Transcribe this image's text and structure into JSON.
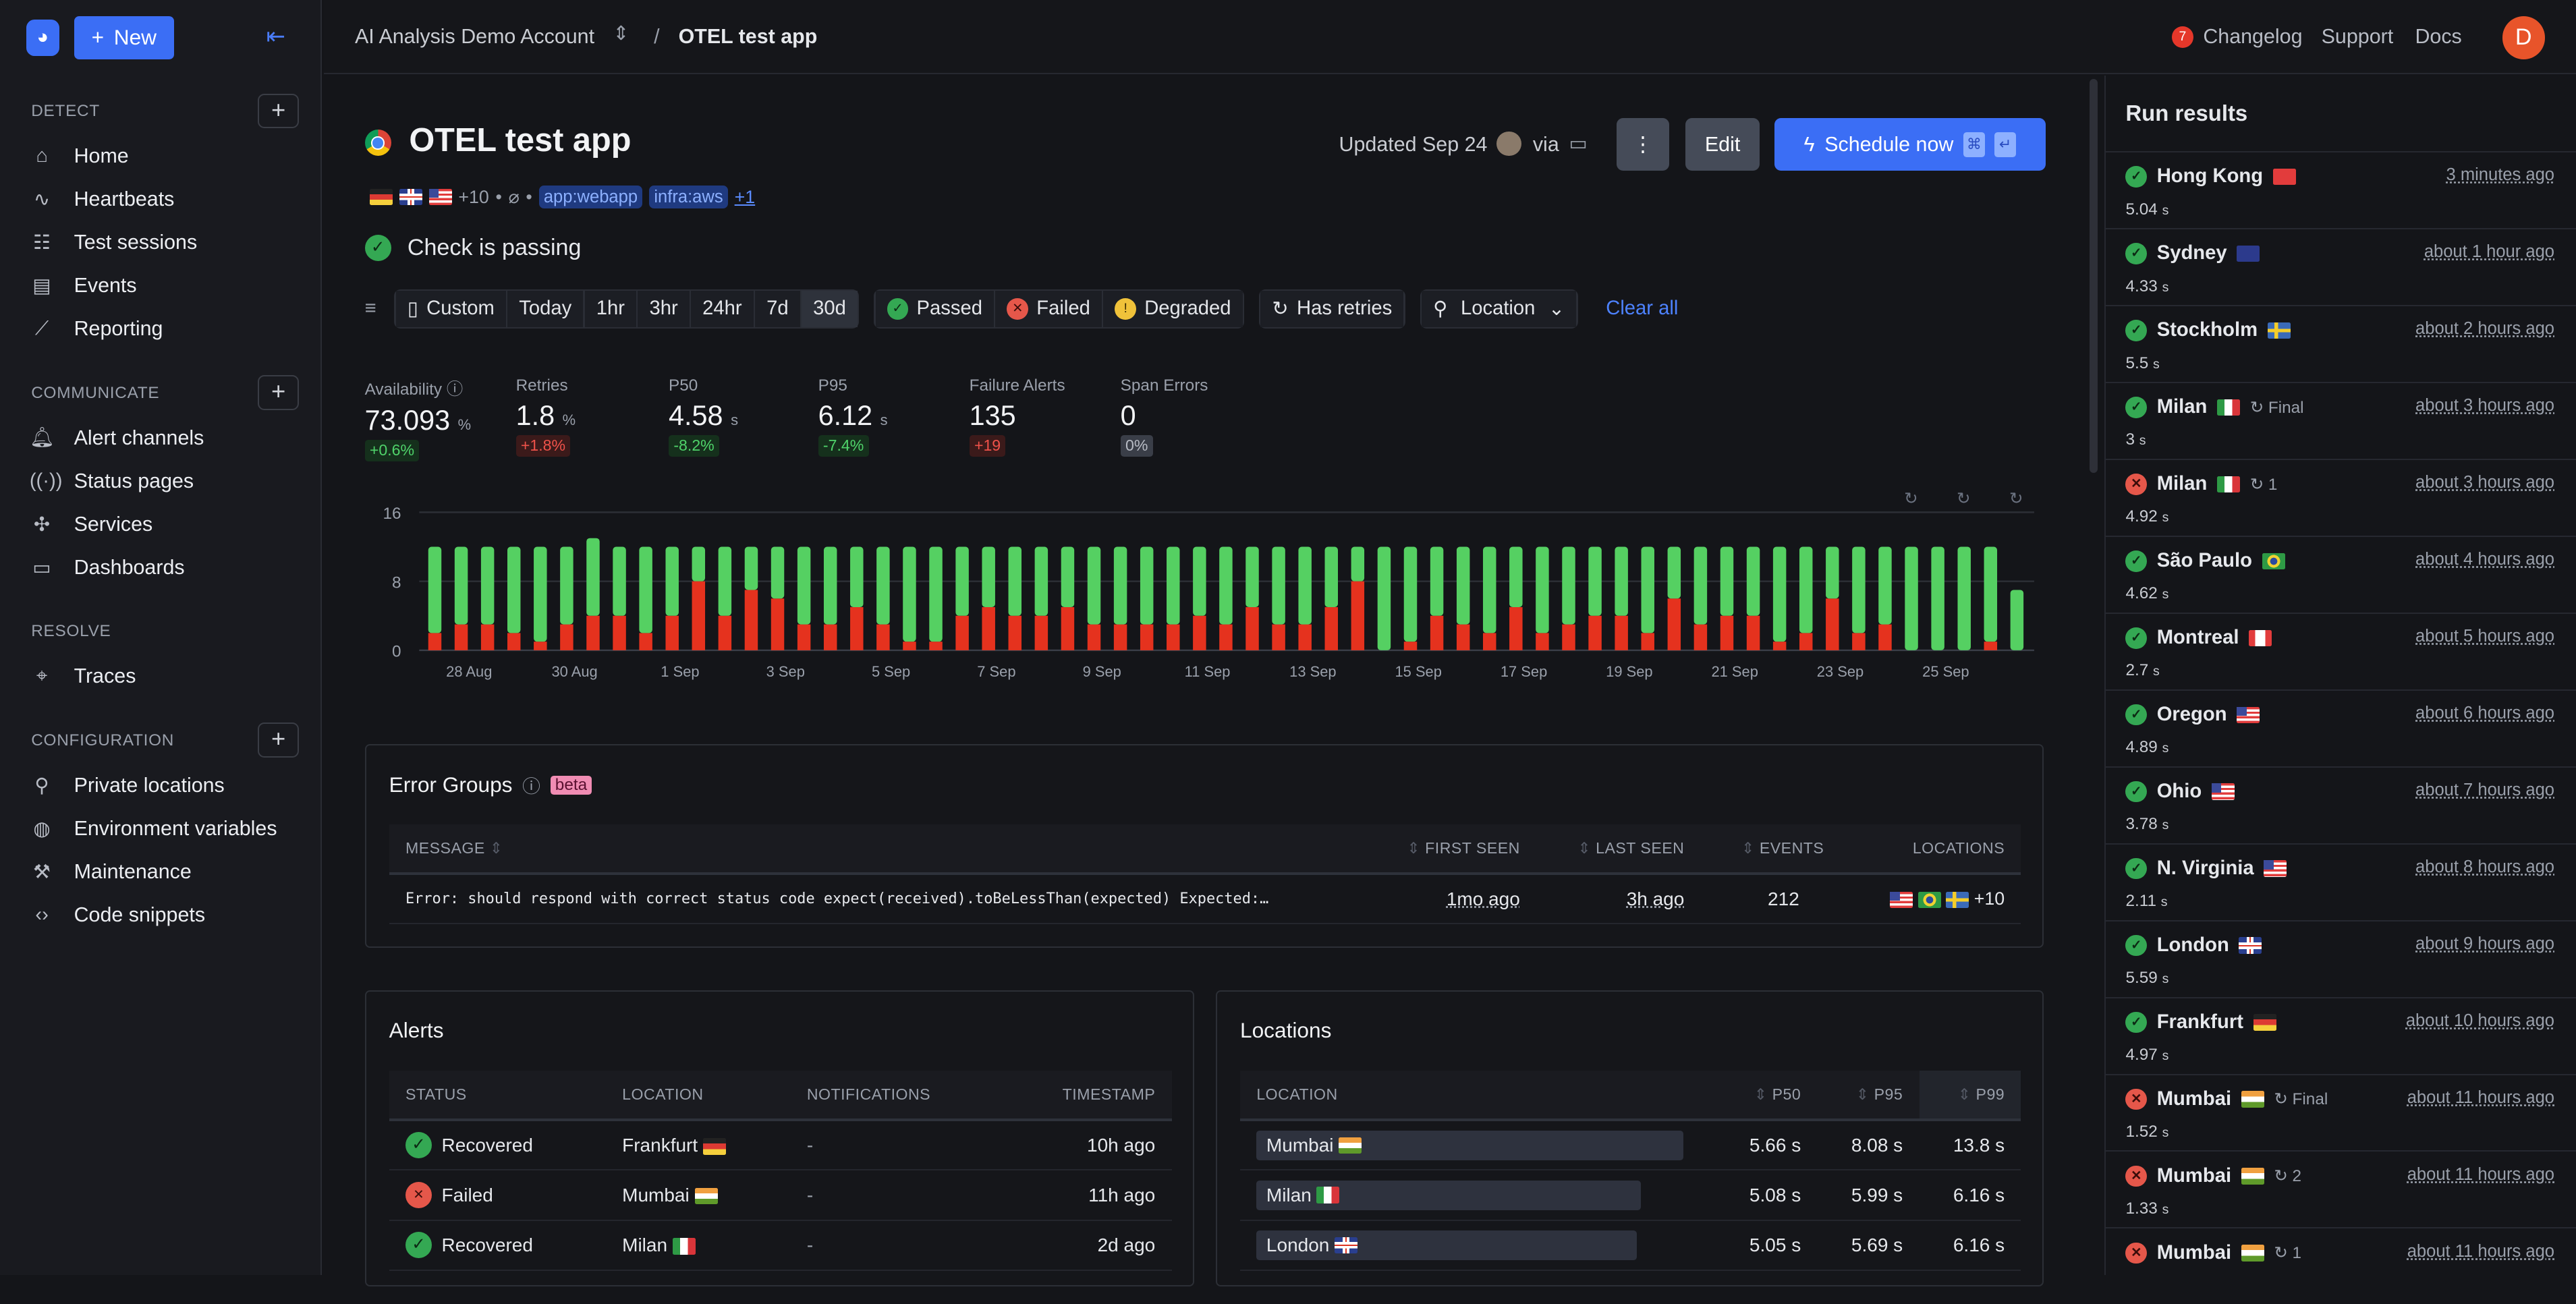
{
  "sidebar": {
    "new_label": "New",
    "sections": [
      {
        "title": "DETECT",
        "has_add": true,
        "items": [
          {
            "label": "Home",
            "icon": "home-icon",
            "glyph": "⌂"
          },
          {
            "label": "Heartbeats",
            "icon": "pulse-icon",
            "glyph": "∿"
          },
          {
            "label": "Test sessions",
            "icon": "checklist-icon",
            "glyph": "☷"
          },
          {
            "label": "Events",
            "icon": "events-icon",
            "glyph": "▤"
          },
          {
            "label": "Reporting",
            "icon": "chart-line-icon",
            "glyph": "⟋"
          }
        ]
      },
      {
        "title": "COMMUNICATE",
        "has_add": true,
        "items": [
          {
            "label": "Alert channels",
            "icon": "bell-icon",
            "glyph": "🔔︎"
          },
          {
            "label": "Status pages",
            "icon": "broadcast-icon",
            "glyph": "((·))"
          },
          {
            "label": "Services",
            "icon": "services-icon",
            "glyph": "✣"
          },
          {
            "label": "Dashboards",
            "icon": "monitor-icon",
            "glyph": "▭"
          }
        ]
      },
      {
        "title": "RESOLVE",
        "has_add": false,
        "items": [
          {
            "label": "Traces",
            "icon": "telescope-icon",
            "glyph": "⌖"
          }
        ]
      },
      {
        "title": "CONFIGURATION",
        "has_add": true,
        "items": [
          {
            "label": "Private locations",
            "icon": "map-pin-icon",
            "glyph": "⚲"
          },
          {
            "label": "Environment variables",
            "icon": "globe-icon",
            "glyph": "◍"
          },
          {
            "label": "Maintenance",
            "icon": "wrench-icon",
            "glyph": "⚒"
          },
          {
            "label": "Code snippets",
            "icon": "code-icon",
            "glyph": "‹›"
          }
        ]
      }
    ]
  },
  "header": {
    "account": "AI Analysis Demo Account",
    "separator": "/",
    "page": "OTEL test app",
    "changelog_count": "7",
    "links": [
      "Changelog",
      "Support",
      "Docs"
    ],
    "avatar_initial": "D"
  },
  "check": {
    "title": "OTEL test app",
    "flags": [
      "de",
      "gb",
      "us"
    ],
    "more_locations": "+10",
    "tags": [
      "app:webapp",
      "infra:aws"
    ],
    "more_tags": "+1",
    "status": "Check is passing",
    "updated": "Updated Sep 24",
    "via": "via",
    "edit_label": "Edit",
    "schedule_label": "Schedule now",
    "schedule_keys": [
      "⌘",
      "↵"
    ]
  },
  "filters": {
    "ranges": [
      "Custom",
      "Today",
      "1hr",
      "3hr",
      "24hr",
      "7d",
      "30d"
    ],
    "selected_range": "30d",
    "statuses": [
      "Passed",
      "Failed",
      "Degraded"
    ],
    "has_retries": "Has retries",
    "location": "Location",
    "clear_all": "Clear all"
  },
  "metrics": [
    {
      "label": "Availability",
      "value": "73.093",
      "unit": "%",
      "change": "+0.6%",
      "tone": "g"
    },
    {
      "label": "Retries",
      "value": "1.8",
      "unit": "%",
      "change": "+1.8%",
      "tone": "r"
    },
    {
      "label": "P50",
      "value": "4.58",
      "unit": "s",
      "change": "-8.2%",
      "tone": "g"
    },
    {
      "label": "P95",
      "value": "6.12",
      "unit": "s",
      "change": "-7.4%",
      "tone": "g"
    },
    {
      "label": "Failure Alerts",
      "value": "135",
      "unit": "",
      "change": "+19",
      "tone": "r"
    },
    {
      "label": "Span Errors",
      "value": "0",
      "unit": "",
      "change": "0%",
      "tone": "n"
    }
  ],
  "chart_data": {
    "type": "stacked-bar",
    "ylim": [
      0,
      16
    ],
    "yticks": [
      "0",
      "8",
      "16"
    ],
    "xticks": [
      "28 Aug",
      "30 Aug",
      "1 Sep",
      "3 Sep",
      "5 Sep",
      "7 Sep",
      "9 Sep",
      "11 Sep",
      "13 Sep",
      "15 Sep",
      "17 Sep",
      "19 Sep",
      "21 Sep",
      "23 Sep",
      "25 Sep"
    ],
    "grid": true,
    "series": [
      {
        "color": "#e5321e",
        "values": [
          2,
          3,
          3,
          2,
          1,
          3,
          4,
          4,
          2,
          4,
          8,
          4,
          7,
          6,
          3,
          3,
          5,
          3,
          1,
          1,
          4,
          5,
          4,
          4,
          5,
          3,
          3,
          3,
          3,
          4,
          3,
          5,
          3,
          3,
          5,
          8,
          0,
          1,
          4,
          3,
          2,
          5,
          2,
          3,
          4,
          4,
          2,
          6,
          3,
          4,
          4,
          1,
          2,
          6,
          2,
          3,
          0,
          0,
          0,
          1,
          0
        ]
      },
      {
        "color": "#55d062",
        "values": [
          10,
          9,
          9,
          10,
          11,
          9,
          9,
          8,
          10,
          8,
          4,
          8,
          5,
          6,
          9,
          9,
          7,
          9,
          11,
          11,
          8,
          7,
          8,
          8,
          7,
          9,
          9,
          9,
          9,
          8,
          9,
          7,
          9,
          9,
          7,
          4,
          12,
          11,
          8,
          9,
          10,
          7,
          10,
          9,
          8,
          8,
          10,
          6,
          9,
          8,
          8,
          11,
          10,
          6,
          10,
          9,
          12,
          12,
          12,
          11,
          7
        ]
      }
    ]
  },
  "error_groups": {
    "title": "Error Groups",
    "badge": "beta",
    "columns": [
      "MESSAGE",
      "FIRST SEEN",
      "LAST SEEN",
      "EVENTS",
      "LOCATIONS"
    ],
    "rows": [
      {
        "message": "Error: should respond with correct status code expect(received).toBeLessThan(expected) Expected:…",
        "first_seen": "1mo ago",
        "last_seen": "3h ago",
        "events": "212",
        "flags": [
          "us",
          "br",
          "se"
        ],
        "more": "+10"
      }
    ]
  },
  "alerts": {
    "title": "Alerts",
    "columns": [
      "STATUS",
      "LOCATION",
      "NOTIFICATIONS",
      "TIMESTAMP"
    ],
    "rows": [
      {
        "status": "Recovered",
        "ok": true,
        "location": "Frankfurt",
        "flag": "de",
        "notifications": "-",
        "timestamp": "10h ago"
      },
      {
        "status": "Failed",
        "ok": false,
        "location": "Mumbai",
        "flag": "in",
        "notifications": "-",
        "timestamp": "11h ago"
      },
      {
        "status": "Recovered",
        "ok": true,
        "location": "Milan",
        "flag": "it",
        "notifications": "-",
        "timestamp": "2d ago"
      }
    ]
  },
  "locations": {
    "title": "Locations",
    "columns": [
      "LOCATION",
      "P50",
      "P95",
      "P99"
    ],
    "rows": [
      {
        "location": "Mumbai",
        "flag": "in",
        "p50": "5.66 s",
        "p95": "8.08 s",
        "p99": "13.8 s",
        "bar": 100
      },
      {
        "location": "Milan",
        "flag": "it",
        "p50": "5.08 s",
        "p95": "5.99 s",
        "p99": "6.16 s",
        "bar": 90
      },
      {
        "location": "London",
        "flag": "gb",
        "p50": "5.05 s",
        "p95": "5.69 s",
        "p99": "6.16 s",
        "bar": 89
      }
    ]
  },
  "run_results": {
    "title": "Run results",
    "items": [
      {
        "ok": true,
        "location": "Hong Kong",
        "flag": "cn",
        "retry": "",
        "duration": "5.04",
        "unit": "s",
        "time": "3 minutes ago"
      },
      {
        "ok": true,
        "location": "Sydney",
        "flag": "au",
        "retry": "",
        "duration": "4.33",
        "unit": "s",
        "time": "about 1 hour ago"
      },
      {
        "ok": true,
        "location": "Stockholm",
        "flag": "se",
        "retry": "",
        "duration": "5.5",
        "unit": "s",
        "time": "about 2 hours ago"
      },
      {
        "ok": true,
        "location": "Milan",
        "flag": "it",
        "retry": "Final",
        "duration": "3",
        "unit": "s",
        "time": "about 3 hours ago"
      },
      {
        "ok": false,
        "location": "Milan",
        "flag": "it",
        "retry": "1",
        "duration": "4.92",
        "unit": "s",
        "time": "about 3 hours ago"
      },
      {
        "ok": true,
        "location": "São Paulo",
        "flag": "br",
        "retry": "",
        "duration": "4.62",
        "unit": "s",
        "time": "about 4 hours ago"
      },
      {
        "ok": true,
        "location": "Montreal",
        "flag": "ca",
        "retry": "",
        "duration": "2.7",
        "unit": "s",
        "time": "about 5 hours ago"
      },
      {
        "ok": true,
        "location": "Oregon",
        "flag": "us",
        "retry": "",
        "duration": "4.89",
        "unit": "s",
        "time": "about 6 hours ago"
      },
      {
        "ok": true,
        "location": "Ohio",
        "flag": "us",
        "retry": "",
        "duration": "3.78",
        "unit": "s",
        "time": "about 7 hours ago"
      },
      {
        "ok": true,
        "location": "N. Virginia",
        "flag": "us",
        "retry": "",
        "duration": "2.11",
        "unit": "s",
        "time": "about 8 hours ago"
      },
      {
        "ok": true,
        "location": "London",
        "flag": "gb",
        "retry": "",
        "duration": "5.59",
        "unit": "s",
        "time": "about 9 hours ago"
      },
      {
        "ok": true,
        "location": "Frankfurt",
        "flag": "de",
        "retry": "",
        "duration": "4.97",
        "unit": "s",
        "time": "about 10 hours ago"
      },
      {
        "ok": false,
        "location": "Mumbai",
        "flag": "in",
        "retry": "Final",
        "duration": "1.52",
        "unit": "s",
        "time": "about 11 hours ago"
      },
      {
        "ok": false,
        "location": "Mumbai",
        "flag": "in",
        "retry": "2",
        "duration": "1.33",
        "unit": "s",
        "time": "about 11 hours ago"
      },
      {
        "ok": false,
        "location": "Mumbai",
        "flag": "in",
        "retry": "1",
        "duration": "",
        "unit": "",
        "time": "about 11 hours ago"
      }
    ]
  }
}
